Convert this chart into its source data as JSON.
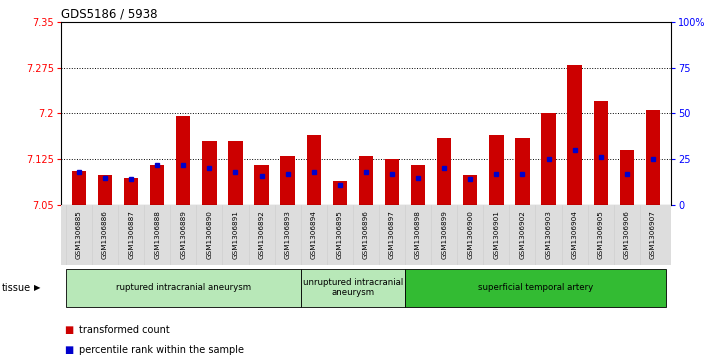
{
  "title": "GDS5186 / 5938",
  "samples": [
    "GSM1306885",
    "GSM1306886",
    "GSM1306887",
    "GSM1306888",
    "GSM1306889",
    "GSM1306890",
    "GSM1306891",
    "GSM1306892",
    "GSM1306893",
    "GSM1306894",
    "GSM1306895",
    "GSM1306896",
    "GSM1306897",
    "GSM1306898",
    "GSM1306899",
    "GSM1306900",
    "GSM1306901",
    "GSM1306902",
    "GSM1306903",
    "GSM1306904",
    "GSM1306905",
    "GSM1306906",
    "GSM1306907"
  ],
  "transformed_count": [
    7.105,
    7.1,
    7.095,
    7.115,
    7.195,
    7.155,
    7.155,
    7.115,
    7.13,
    7.165,
    7.09,
    7.13,
    7.125,
    7.115,
    7.16,
    7.1,
    7.165,
    7.16,
    7.2,
    7.28,
    7.22,
    7.14,
    7.205
  ],
  "percentile_rank": [
    18,
    15,
    14,
    22,
    22,
    20,
    18,
    16,
    17,
    18,
    11,
    18,
    17,
    15,
    20,
    14,
    17,
    17,
    25,
    30,
    26,
    17,
    25
  ],
  "ylim_left": [
    7.05,
    7.35
  ],
  "ylim_right": [
    0,
    100
  ],
  "yticks_left": [
    7.05,
    7.125,
    7.2,
    7.275,
    7.35
  ],
  "yticks_right": [
    0,
    25,
    50,
    75,
    100
  ],
  "ytick_labels_left": [
    "7.05",
    "7.125",
    "7.2",
    "7.275",
    "7.35"
  ],
  "ytick_labels_right": [
    "0",
    "25",
    "50",
    "75",
    "100%"
  ],
  "groups": [
    {
      "label": "ruptured intracranial aneurysm",
      "start": 0,
      "end": 8,
      "color": "#b8e8b8"
    },
    {
      "label": "unruptured intracranial\naneurysm",
      "start": 9,
      "end": 12,
      "color": "#b8e8b8"
    },
    {
      "label": "superficial temporal artery",
      "start": 13,
      "end": 22,
      "color": "#33bb33"
    }
  ],
  "bar_color": "#cc0000",
  "blue_color": "#0000cc",
  "base_value": 7.05,
  "tissue_label": "tissue",
  "legend_transformed": "transformed count",
  "legend_percentile": "percentile rank within the sample",
  "plot_bg": "#ffffff",
  "xtick_bg": "#dddddd"
}
